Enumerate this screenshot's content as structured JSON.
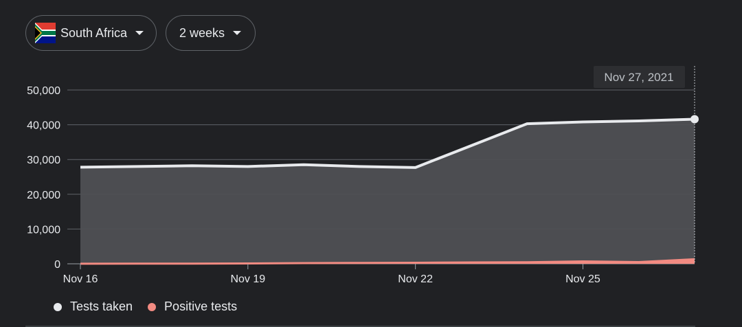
{
  "filters": {
    "country": "South Africa",
    "range": "2 weeks"
  },
  "colors": {
    "background": "#202124",
    "tests_line": "#e8eaed",
    "tests_fill": "#4f5054",
    "positive": "#f28b82",
    "grid": "#5f6368"
  },
  "tooltip": {
    "date": "Nov 27, 2021"
  },
  "chart_data": {
    "type": "area",
    "x": [
      "Nov 16",
      "Nov 17",
      "Nov 18",
      "Nov 19",
      "Nov 20",
      "Nov 21",
      "Nov 22",
      "Nov 23",
      "Nov 24",
      "Nov 25",
      "Nov 26",
      "Nov 27"
    ],
    "series": [
      {
        "name": "Tests taken",
        "values": [
          27800,
          28000,
          28200,
          28000,
          28500,
          28000,
          27700,
          34000,
          40300,
          40800,
          41100,
          41600
        ]
      },
      {
        "name": "Positive tests",
        "values": [
          30,
          40,
          60,
          100,
          200,
          250,
          300,
          400,
          450,
          700,
          500,
          1300
        ]
      }
    ],
    "xticks": [
      "Nov 16",
      "Nov 19",
      "Nov 22",
      "Nov 25"
    ],
    "yticks": [
      "0",
      "10,000",
      "20,000",
      "30,000",
      "40,000",
      "50,000"
    ],
    "ylim": [
      0,
      50000
    ],
    "grid": true,
    "legend": "bottom-left"
  }
}
